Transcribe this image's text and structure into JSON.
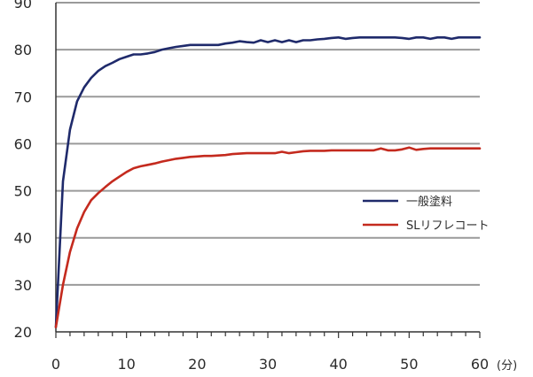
{
  "chart_data": {
    "type": "line",
    "title": "",
    "xlabel": "",
    "ylabel": "",
    "x_unit": "(分)",
    "xlim": [
      0,
      60
    ],
    "ylim": [
      20,
      90
    ],
    "x_ticks": [
      0,
      10,
      20,
      30,
      40,
      50,
      60
    ],
    "y_ticks": [
      20,
      30,
      40,
      50,
      60,
      70,
      80,
      90
    ],
    "grid": "horizontal",
    "legend_position": "right",
    "series": [
      {
        "name": "一般塗料",
        "color": "#1f2a6b",
        "points": [
          [
            0,
            21
          ],
          [
            1,
            52
          ],
          [
            2,
            63
          ],
          [
            3,
            69
          ],
          [
            4,
            72
          ],
          [
            5,
            74
          ],
          [
            6,
            75.5
          ],
          [
            7,
            76.5
          ],
          [
            8,
            77.2
          ],
          [
            9,
            78
          ],
          [
            10,
            78.5
          ],
          [
            11,
            79
          ],
          [
            12,
            79
          ],
          [
            13,
            79.2
          ],
          [
            14,
            79.5
          ],
          [
            15,
            80
          ],
          [
            16,
            80.3
          ],
          [
            17,
            80.6
          ],
          [
            18,
            80.8
          ],
          [
            19,
            81
          ],
          [
            20,
            81
          ],
          [
            21,
            81
          ],
          [
            22,
            81
          ],
          [
            23,
            81
          ],
          [
            24,
            81.3
          ],
          [
            25,
            81.5
          ],
          [
            26,
            81.8
          ],
          [
            27,
            81.6
          ],
          [
            28,
            81.5
          ],
          [
            29,
            82
          ],
          [
            30,
            81.6
          ],
          [
            31,
            82
          ],
          [
            32,
            81.6
          ],
          [
            33,
            82
          ],
          [
            34,
            81.6
          ],
          [
            35,
            82
          ],
          [
            36,
            82
          ],
          [
            37,
            82.2
          ],
          [
            38,
            82.3
          ],
          [
            39,
            82.5
          ],
          [
            40,
            82.6
          ],
          [
            41,
            82.3
          ],
          [
            42,
            82.5
          ],
          [
            43,
            82.6
          ],
          [
            44,
            82.6
          ],
          [
            45,
            82.6
          ],
          [
            46,
            82.6
          ],
          [
            47,
            82.6
          ],
          [
            48,
            82.6
          ],
          [
            49,
            82.5
          ],
          [
            50,
            82.3
          ],
          [
            51,
            82.6
          ],
          [
            52,
            82.6
          ],
          [
            53,
            82.3
          ],
          [
            54,
            82.6
          ],
          [
            55,
            82.6
          ],
          [
            56,
            82.3
          ],
          [
            57,
            82.6
          ],
          [
            58,
            82.6
          ],
          [
            59,
            82.6
          ],
          [
            60,
            82.6
          ]
        ]
      },
      {
        "name": "SLリフレコート",
        "color": "#c42a1e",
        "points": [
          [
            0,
            21
          ],
          [
            1,
            30
          ],
          [
            2,
            37
          ],
          [
            3,
            42
          ],
          [
            4,
            45.5
          ],
          [
            5,
            48
          ],
          [
            6,
            49.5
          ],
          [
            7,
            50.8
          ],
          [
            8,
            52
          ],
          [
            9,
            53
          ],
          [
            10,
            54
          ],
          [
            11,
            54.8
          ],
          [
            12,
            55.2
          ],
          [
            13,
            55.5
          ],
          [
            14,
            55.8
          ],
          [
            15,
            56.2
          ],
          [
            16,
            56.5
          ],
          [
            17,
            56.8
          ],
          [
            18,
            57
          ],
          [
            19,
            57.2
          ],
          [
            20,
            57.3
          ],
          [
            21,
            57.4
          ],
          [
            22,
            57.4
          ],
          [
            23,
            57.5
          ],
          [
            24,
            57.6
          ],
          [
            25,
            57.8
          ],
          [
            26,
            57.9
          ],
          [
            27,
            58
          ],
          [
            28,
            58
          ],
          [
            29,
            58
          ],
          [
            30,
            58
          ],
          [
            31,
            58
          ],
          [
            32,
            58.3
          ],
          [
            33,
            58
          ],
          [
            34,
            58.2
          ],
          [
            35,
            58.4
          ],
          [
            36,
            58.5
          ],
          [
            37,
            58.5
          ],
          [
            38,
            58.5
          ],
          [
            39,
            58.6
          ],
          [
            40,
            58.6
          ],
          [
            41,
            58.6
          ],
          [
            42,
            58.6
          ],
          [
            43,
            58.6
          ],
          [
            44,
            58.6
          ],
          [
            45,
            58.6
          ],
          [
            46,
            59
          ],
          [
            47,
            58.6
          ],
          [
            48,
            58.6
          ],
          [
            49,
            58.8
          ],
          [
            50,
            59.2
          ],
          [
            51,
            58.7
          ],
          [
            52,
            58.9
          ],
          [
            53,
            59
          ],
          [
            54,
            59
          ],
          [
            55,
            59
          ],
          [
            56,
            59
          ],
          [
            57,
            59
          ],
          [
            58,
            59
          ],
          [
            59,
            59
          ],
          [
            60,
            59
          ]
        ]
      }
    ]
  }
}
